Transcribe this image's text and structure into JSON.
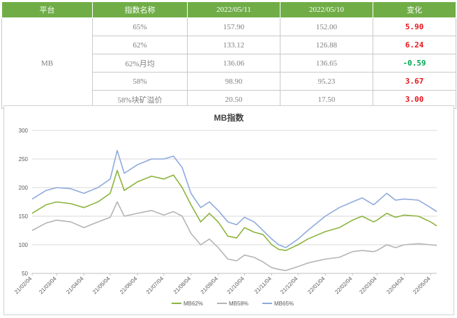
{
  "table": {
    "headers": [
      "平台",
      "指数名称",
      "2022/05/11",
      "2022/05/10",
      "变化"
    ],
    "platform": "MB",
    "rows": [
      {
        "name": "65%",
        "v1": "157.90",
        "v2": "152.00",
        "change": "5.90",
        "dir": "up"
      },
      {
        "name": "62%",
        "v1": "133.12",
        "v2": "126.88",
        "change": "6.24",
        "dir": "up"
      },
      {
        "name": "62%月均",
        "v1": "136.06",
        "v2": "136.65",
        "change": "-0.59",
        "dir": "down"
      },
      {
        "name": "58%",
        "v1": "98.90",
        "v2": "95.23",
        "change": "3.67",
        "dir": "up"
      },
      {
        "name": "58%块矿溢价",
        "v1": "20.50",
        "v2": "17.50",
        "change": "3.00",
        "dir": "up"
      }
    ],
    "colors": {
      "header_bg": "#70ad47",
      "up": "#e8141b",
      "down": "#00a651"
    }
  },
  "chart_data": {
    "type": "line",
    "title": "MB指数",
    "ylim": [
      50,
      300
    ],
    "yticks": [
      50,
      100,
      150,
      200,
      250,
      300
    ],
    "xlim": [
      "2021-02-04",
      "2022-05-11"
    ],
    "xticks": [
      "21/02/04",
      "21/03/04",
      "21/04/04",
      "21/05/04",
      "21/06/04",
      "21/07/04",
      "21/08/04",
      "21/09/04",
      "21/10/04",
      "21/11/04",
      "21/12/04",
      "22/01/04",
      "22/02/04",
      "22/03/04",
      "22/04/04",
      "22/05/04"
    ],
    "grid": true,
    "legend": "bottom",
    "series": [
      {
        "name": "MB62%",
        "color": "#8cb43c",
        "points": [
          [
            "2021-02-04",
            155
          ],
          [
            "2021-02-20",
            170
          ],
          [
            "2021-03-04",
            175
          ],
          [
            "2021-03-20",
            172
          ],
          [
            "2021-04-04",
            165
          ],
          [
            "2021-04-20",
            175
          ],
          [
            "2021-05-04",
            190
          ],
          [
            "2021-05-12",
            230
          ],
          [
            "2021-05-20",
            195
          ],
          [
            "2021-06-04",
            210
          ],
          [
            "2021-06-20",
            220
          ],
          [
            "2021-07-04",
            215
          ],
          [
            "2021-07-15",
            222
          ],
          [
            "2021-07-25",
            200
          ],
          [
            "2021-08-04",
            170
          ],
          [
            "2021-08-15",
            140
          ],
          [
            "2021-08-25",
            155
          ],
          [
            "2021-09-04",
            140
          ],
          [
            "2021-09-15",
            115
          ],
          [
            "2021-09-25",
            112
          ],
          [
            "2021-10-04",
            130
          ],
          [
            "2021-10-15",
            122
          ],
          [
            "2021-10-25",
            118
          ],
          [
            "2021-11-04",
            100
          ],
          [
            "2021-11-12",
            92
          ],
          [
            "2021-11-20",
            90
          ],
          [
            "2021-12-04",
            100
          ],
          [
            "2021-12-15",
            110
          ],
          [
            "2022-01-04",
            123
          ],
          [
            "2022-01-20",
            130
          ],
          [
            "2022-02-04",
            143
          ],
          [
            "2022-02-15",
            150
          ],
          [
            "2022-02-28",
            140
          ],
          [
            "2022-03-04",
            143
          ],
          [
            "2022-03-15",
            155
          ],
          [
            "2022-03-25",
            148
          ],
          [
            "2022-04-04",
            152
          ],
          [
            "2022-04-20",
            150
          ],
          [
            "2022-05-04",
            140
          ],
          [
            "2022-05-11",
            133
          ]
        ]
      },
      {
        "name": "MB58%",
        "color": "#b4b4b4",
        "points": [
          [
            "2021-02-04",
            125
          ],
          [
            "2021-02-20",
            138
          ],
          [
            "2021-03-04",
            143
          ],
          [
            "2021-03-20",
            140
          ],
          [
            "2021-04-04",
            130
          ],
          [
            "2021-04-20",
            140
          ],
          [
            "2021-05-04",
            148
          ],
          [
            "2021-05-12",
            175
          ],
          [
            "2021-05-20",
            150
          ],
          [
            "2021-06-04",
            155
          ],
          [
            "2021-06-20",
            160
          ],
          [
            "2021-07-04",
            152
          ],
          [
            "2021-07-15",
            158
          ],
          [
            "2021-07-25",
            150
          ],
          [
            "2021-08-04",
            120
          ],
          [
            "2021-08-15",
            100
          ],
          [
            "2021-08-25",
            110
          ],
          [
            "2021-09-04",
            95
          ],
          [
            "2021-09-15",
            75
          ],
          [
            "2021-09-25",
            72
          ],
          [
            "2021-10-04",
            82
          ],
          [
            "2021-10-15",
            78
          ],
          [
            "2021-10-25",
            70
          ],
          [
            "2021-11-04",
            60
          ],
          [
            "2021-11-12",
            57
          ],
          [
            "2021-11-20",
            55
          ],
          [
            "2021-12-04",
            62
          ],
          [
            "2021-12-15",
            68
          ],
          [
            "2022-01-04",
            75
          ],
          [
            "2022-01-20",
            78
          ],
          [
            "2022-02-04",
            88
          ],
          [
            "2022-02-15",
            90
          ],
          [
            "2022-02-28",
            88
          ],
          [
            "2022-03-04",
            90
          ],
          [
            "2022-03-15",
            100
          ],
          [
            "2022-03-25",
            95
          ],
          [
            "2022-04-04",
            100
          ],
          [
            "2022-04-20",
            102
          ],
          [
            "2022-05-04",
            100
          ],
          [
            "2022-05-11",
            99
          ]
        ]
      },
      {
        "name": "MB65%",
        "color": "#8eaadb",
        "points": [
          [
            "2021-02-04",
            180
          ],
          [
            "2021-02-20",
            195
          ],
          [
            "2021-03-04",
            200
          ],
          [
            "2021-03-20",
            198
          ],
          [
            "2021-04-04",
            190
          ],
          [
            "2021-04-20",
            200
          ],
          [
            "2021-05-04",
            215
          ],
          [
            "2021-05-12",
            265
          ],
          [
            "2021-05-20",
            225
          ],
          [
            "2021-06-04",
            240
          ],
          [
            "2021-06-20",
            250
          ],
          [
            "2021-07-04",
            250
          ],
          [
            "2021-07-15",
            255
          ],
          [
            "2021-07-25",
            235
          ],
          [
            "2021-08-04",
            190
          ],
          [
            "2021-08-15",
            165
          ],
          [
            "2021-08-25",
            175
          ],
          [
            "2021-09-04",
            160
          ],
          [
            "2021-09-15",
            140
          ],
          [
            "2021-09-25",
            135
          ],
          [
            "2021-10-04",
            148
          ],
          [
            "2021-10-15",
            140
          ],
          [
            "2021-10-25",
            125
          ],
          [
            "2021-11-04",
            110
          ],
          [
            "2021-11-12",
            100
          ],
          [
            "2021-11-20",
            95
          ],
          [
            "2021-12-04",
            110
          ],
          [
            "2021-12-15",
            125
          ],
          [
            "2022-01-04",
            150
          ],
          [
            "2022-01-20",
            165
          ],
          [
            "2022-02-04",
            175
          ],
          [
            "2022-02-15",
            182
          ],
          [
            "2022-02-28",
            170
          ],
          [
            "2022-03-04",
            175
          ],
          [
            "2022-03-15",
            190
          ],
          [
            "2022-03-25",
            178
          ],
          [
            "2022-04-04",
            180
          ],
          [
            "2022-04-20",
            178
          ],
          [
            "2022-05-04",
            165
          ],
          [
            "2022-05-11",
            158
          ]
        ]
      }
    ]
  }
}
